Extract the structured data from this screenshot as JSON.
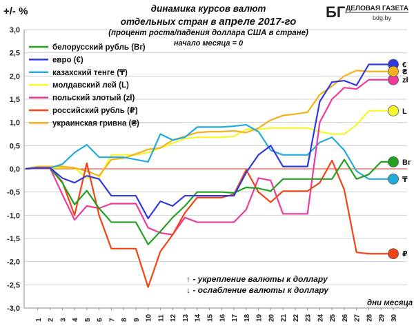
{
  "chart_data": {
    "type": "line",
    "y_unit_label": "+/- %",
    "title_line1": "динамика курсов валют",
    "title_line2_part1": "отдельных стран в ",
    "title_line2_part2": "апреле 2017-го",
    "subtitle": "(процент роста/падения доллара США в стране)",
    "note": "начало месяца = 0",
    "xlabel": "дни месяца",
    "legend_note_up": "↑ - укрепление валюты к доллару",
    "legend_note_down": "↓ - ослабление валюты к доллару",
    "logo_mark": "БГ",
    "logo_name": "ДЕЛОВАЯ ГАЗЕТА",
    "logo_site": "bdg.by",
    "ylim": [
      -3.0,
      3.0
    ],
    "y_ticks": [
      "3,0",
      "2,5",
      "2,0",
      "1,5",
      "1,0",
      "0,5",
      "0,0",
      "-0,5",
      "-1,0",
      "-1,5",
      "-2,0",
      "-2,5",
      "-3,0"
    ],
    "x": [
      0,
      1,
      2,
      3,
      4,
      5,
      6,
      7,
      8,
      9,
      10,
      11,
      12,
      13,
      14,
      15,
      16,
      17,
      18,
      19,
      20,
      21,
      22,
      23,
      24,
      25,
      26,
      27,
      28,
      29,
      30
    ],
    "x_ticks": [
      "1",
      "2",
      "3",
      "4",
      "5",
      "6",
      "7",
      "8",
      "9",
      "10",
      "11",
      "12",
      "13",
      "14",
      "15",
      "16",
      "17",
      "18",
      "19",
      "20",
      "21",
      "22",
      "23",
      "24",
      "25",
      "26",
      "27",
      "28",
      "29",
      "30"
    ],
    "zero_line_color": "#e03020",
    "series": [
      {
        "name": "белорусский рубль (Br)",
        "symbol": "Br",
        "color": "#22a020",
        "values": [
          0,
          0.02,
          0.02,
          -0.3,
          -0.77,
          -0.47,
          -0.85,
          -1.15,
          -1.15,
          -1.15,
          -1.63,
          -1.35,
          -1.05,
          -0.8,
          -0.5,
          -0.5,
          -0.5,
          -0.52,
          -0.4,
          -0.42,
          -0.48,
          -0.22,
          -0.22,
          -0.22,
          -0.22,
          -0.22,
          0.2,
          -0.22,
          -0.12,
          0.15,
          0.15
        ]
      },
      {
        "name": "евро (€)",
        "symbol": "€",
        "color": "#2f39e0",
        "values": [
          0,
          0.02,
          0.02,
          -0.2,
          -0.3,
          -0.15,
          -0.22,
          -0.58,
          -0.58,
          -0.58,
          -1.07,
          -0.7,
          -0.8,
          -0.58,
          -0.58,
          -0.58,
          -0.58,
          -0.58,
          -0.08,
          0.3,
          0.5,
          0.05,
          0.05,
          0.05,
          1.45,
          1.87,
          1.9,
          1.8,
          2.25,
          2.25,
          2.25
        ]
      },
      {
        "name": "казахский тенге (₸)",
        "symbol": "₸",
        "color": "#22aadf",
        "values": [
          0,
          0.02,
          0.02,
          0.1,
          0.35,
          0.52,
          0.25,
          0.25,
          0.25,
          0.2,
          0.15,
          0.75,
          0.62,
          0.68,
          0.9,
          0.9,
          0.9,
          0.92,
          0.95,
          0.8,
          0.4,
          0.3,
          0.3,
          0.3,
          0.57,
          0.68,
          0.4,
          -0.05,
          -0.22,
          -0.22,
          -0.22
        ]
      },
      {
        "name": "молдавский лей (L)",
        "symbol": "L",
        "color": "#f6f62a",
        "values": [
          0,
          0.02,
          0.02,
          0.02,
          0.02,
          -0.2,
          -0.2,
          0.3,
          0.3,
          0.3,
          0.35,
          0.45,
          0.55,
          0.65,
          0.68,
          0.68,
          0.68,
          0.7,
          0.85,
          0.85,
          0.88,
          0.88,
          0.88,
          0.88,
          0.8,
          0.75,
          0.75,
          0.95,
          1.25,
          1.25,
          1.25
        ]
      },
      {
        "name": "польский злотый (zł)",
        "symbol": "zł",
        "color": "#ee3a9c",
        "values": [
          0,
          0.02,
          0.02,
          -0.55,
          -1.1,
          -0.8,
          -0.85,
          -0.75,
          -0.75,
          -0.75,
          -1.27,
          -1.38,
          -1.42,
          -1.05,
          -1.15,
          -1.15,
          -1.15,
          -1.15,
          -0.88,
          -0.2,
          -0.25,
          -0.97,
          -0.97,
          -0.97,
          1.0,
          1.5,
          1.75,
          1.72,
          1.92,
          1.92,
          1.92
        ]
      },
      {
        "name": "российский рубль (₽)",
        "symbol": "₽",
        "color": "#f24314",
        "values": [
          0,
          0.02,
          0.02,
          -0.28,
          -1.0,
          0.12,
          -1.0,
          -1.72,
          -1.72,
          -1.72,
          -2.55,
          -1.78,
          -1.42,
          -0.95,
          -0.62,
          -0.62,
          -0.62,
          -0.55,
          -0.02,
          -0.5,
          -0.72,
          -0.48,
          -0.48,
          -0.48,
          -0.3,
          0.18,
          -0.45,
          -1.8,
          -1.83,
          -1.83,
          -1.83
        ]
      },
      {
        "name": "украинская гривна (₴)",
        "symbol": "₴",
        "color": "#f5b01a",
        "values": [
          0,
          0.05,
          0.05,
          0.05,
          0.02,
          -0.05,
          -0.15,
          0.2,
          0.23,
          0.32,
          0.42,
          0.45,
          0.62,
          0.7,
          0.78,
          0.8,
          0.8,
          0.82,
          0.78,
          0.88,
          1.05,
          1.15,
          1.18,
          1.22,
          1.6,
          1.78,
          2.0,
          2.12,
          2.1,
          2.1,
          2.1
        ]
      }
    ]
  }
}
